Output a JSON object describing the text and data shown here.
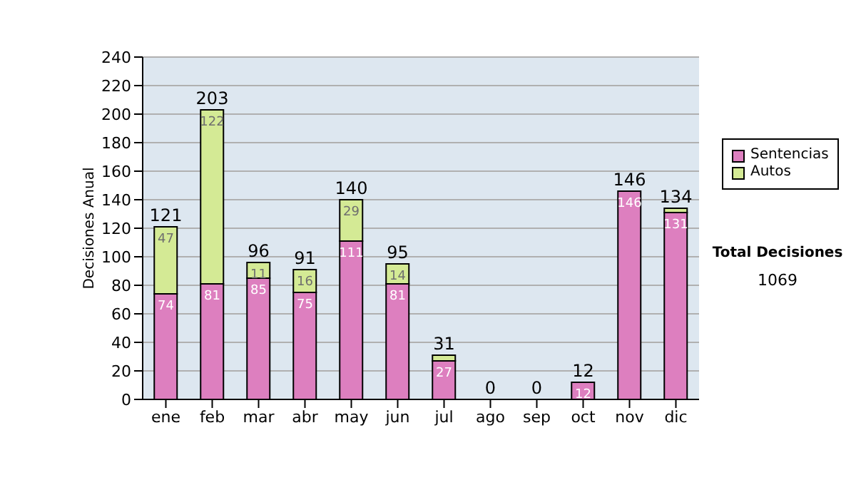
{
  "chart_data": {
    "type": "bar",
    "stacked": true,
    "ylabel": "Decisiones Anual",
    "categories": [
      "ene",
      "feb",
      "mar",
      "abr",
      "may",
      "jun",
      "jul",
      "ago",
      "sep",
      "oct",
      "nov",
      "dic"
    ],
    "series": [
      {
        "name": "Sentencias",
        "color": "#dd7fbf",
        "values": [
          74,
          81,
          85,
          75,
          111,
          81,
          27,
          0,
          0,
          12,
          146,
          131
        ],
        "value_labels": [
          "74",
          "81",
          "85",
          "75",
          "111",
          "81",
          "27",
          null,
          null,
          "12",
          "146",
          "131"
        ]
      },
      {
        "name": "Autos",
        "color": "#d4ea95",
        "values": [
          47,
          122,
          11,
          16,
          29,
          14,
          4,
          0,
          0,
          0,
          0,
          3
        ],
        "value_labels": [
          "47",
          "122",
          "11",
          "16",
          "29",
          "14",
          null,
          null,
          null,
          null,
          null,
          null
        ]
      }
    ],
    "totals": [
      "121",
      "203",
      "96",
      "91",
      "140",
      "95",
      "31",
      "0",
      "0",
      "12",
      "146",
      "134"
    ],
    "ylim": [
      0,
      240
    ],
    "yticks": [
      0,
      20,
      40,
      60,
      80,
      100,
      120,
      140,
      160,
      180,
      200,
      220,
      240
    ],
    "grid": "y",
    "legend": "right",
    "annotations": [
      "Total Decisiones",
      "1069"
    ]
  }
}
